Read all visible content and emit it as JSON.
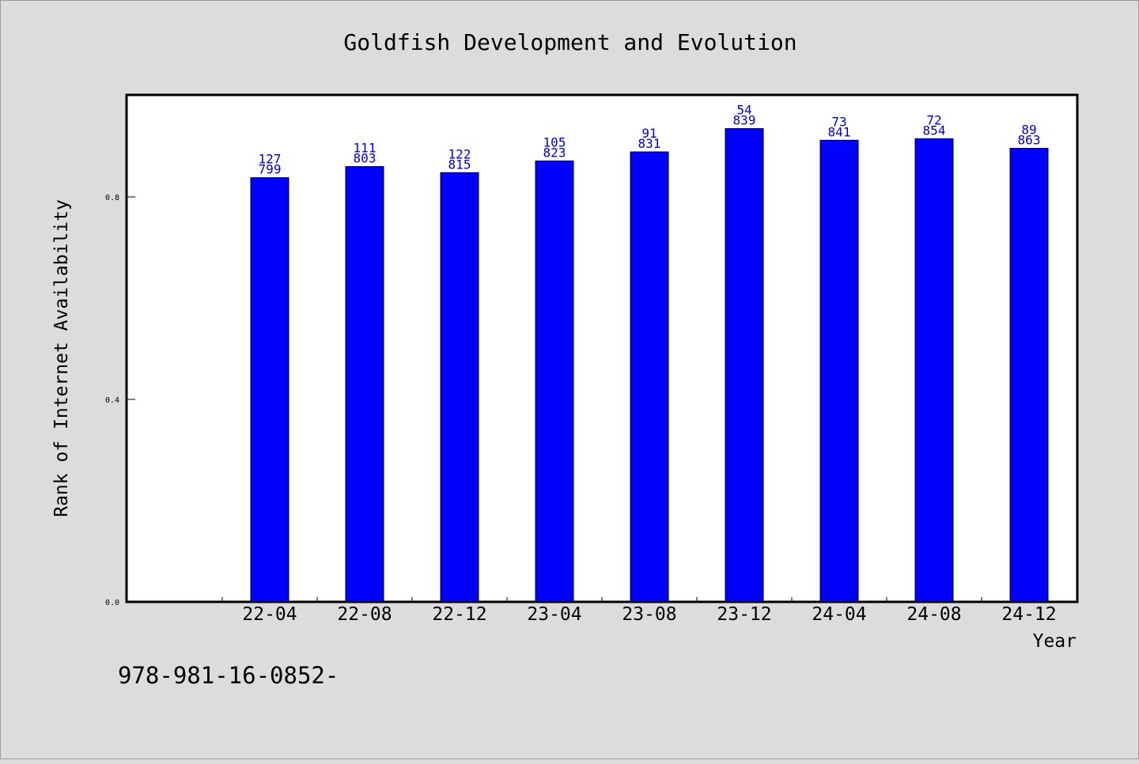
{
  "chart_data": {
    "type": "bar",
    "title": "Goldfish Development and Evolution",
    "xlabel": "Year",
    "ylabel": "Rank of Internet Availability",
    "categories": [
      "22-04",
      "22-08",
      "22-12",
      "23-04",
      "23-08",
      "23-12",
      "24-04",
      "24-08",
      "24-12"
    ],
    "values": [
      0.838,
      0.86,
      0.848,
      0.871,
      0.889,
      0.935,
      0.912,
      0.915,
      0.896
    ],
    "bar_labels_top": [
      "127",
      "111",
      "122",
      "105",
      "91",
      "54",
      "73",
      "72",
      "89"
    ],
    "bar_labels_bottom": [
      "799",
      "803",
      "815",
      "823",
      "831",
      "839",
      "841",
      "854",
      "863"
    ],
    "yticks": [
      "0.0",
      "0.4",
      "0.8"
    ],
    "ylim": [
      0,
      1.0
    ],
    "grid": false,
    "legend": "none",
    "bar_color": "#0000ff",
    "label_color": "#0000cc"
  },
  "footer_note": "978-981-16-0852-"
}
